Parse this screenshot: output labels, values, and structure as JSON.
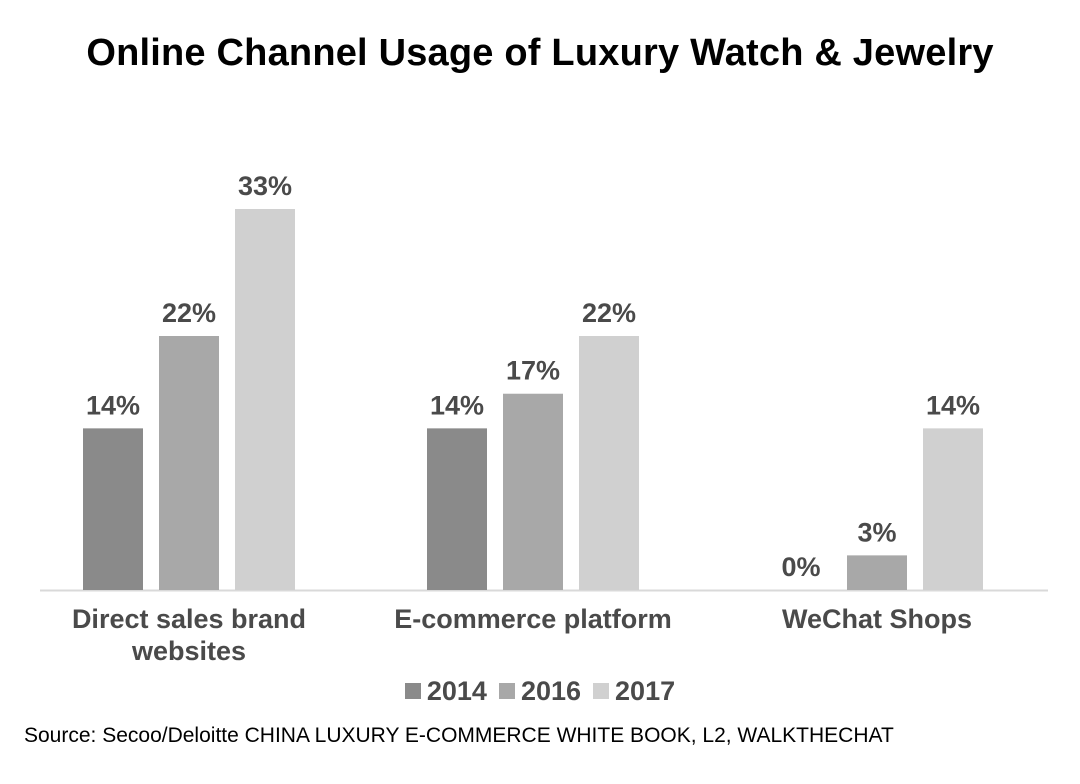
{
  "chart_data": {
    "type": "bar",
    "title": "Online Channel Usage of Luxury Watch & Jewelry",
    "categories": [
      "Direct sales brand websites",
      "E-commerce platform",
      "WeChat Shops"
    ],
    "category_lines": [
      [
        "Direct sales brand",
        "websites"
      ],
      [
        "E-commerce platform"
      ],
      [
        "WeChat Shops"
      ]
    ],
    "series": [
      {
        "name": "2014",
        "values": [
          14,
          14,
          0
        ],
        "labels": [
          "14%",
          "14%",
          "0%"
        ],
        "color": "#8a8a8a"
      },
      {
        "name": "2016",
        "values": [
          22,
          17,
          3
        ],
        "labels": [
          "22%",
          "17%",
          "3%"
        ],
        "color": "#a8a8a8"
      },
      {
        "name": "2017",
        "values": [
          33,
          22,
          14
        ],
        "labels": [
          "33%",
          "22%",
          "14%"
        ],
        "color": "#d0d0d0"
      }
    ],
    "ylim": [
      0,
      33
    ],
    "xlabel": "",
    "ylabel": "",
    "grid": false,
    "legend_position": "bottom",
    "source": "Source: Secoo/Deloitte CHINA LUXURY E-COMMERCE WHITE BOOK, L2, WALKTHECHAT"
  }
}
